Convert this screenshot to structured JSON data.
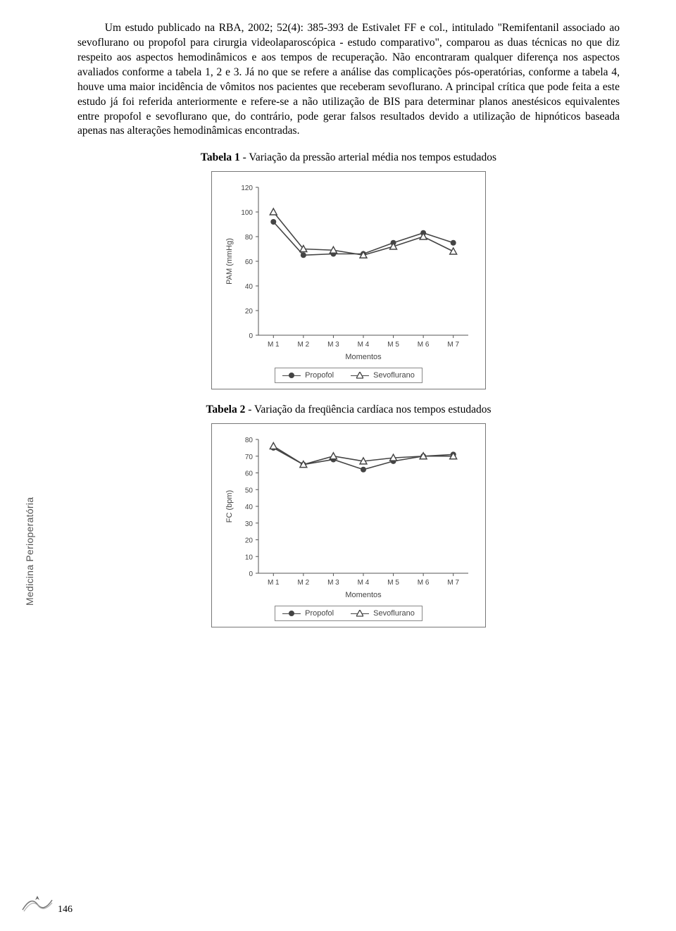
{
  "sidebar_label": "Medicina Perioperatória",
  "page_number": "146",
  "paragraph": "Um estudo publicado na RBA, 2002; 52(4): 385-393 de Estivalet FF e col., intitulado \"Remifentanil associado ao sevoflurano ou propofol para cirurgia videolaparoscópica - estudo comparativo\", comparou as duas técnicas no que diz respeito aos aspectos hemodinâmicos e aos tempos de recuperação. Não encontraram qualquer diferença nos aspectos avaliados conforme a tabela 1, 2 e 3. Já no que se refere a análise das complicações pós-operatórias, conforme a tabela 4, houve uma maior incidência de vômitos nos pacientes que receberam sevoflurano. A principal crítica que pode feita a este estudo já foi referida anteriormente e refere-se a não utilização de BIS para determinar planos anestésicos equivalentes entre propofol e sevoflurano que, do contrário, pode gerar falsos resultados devido a utilização de hipnóticos baseada apenas nas alterações hemodinâmicas encontradas.",
  "table1_caption_bold": "Tabela 1",
  "table1_caption_rest": " - Variação da pressão arterial média nos tempos estudados",
  "table2_caption_bold": "Tabela 2",
  "table2_caption_rest": " - Variação da freqüência cardíaca nos tempos estudados",
  "chart1": {
    "type": "line",
    "ylabel": "PAM (mmHg)",
    "xlabel": "Momentos",
    "categories": [
      "M 1",
      "M 2",
      "M 3",
      "M 4",
      "M 5",
      "M 6",
      "M 7"
    ],
    "yticks": [
      0,
      20,
      40,
      60,
      80,
      100,
      120
    ],
    "ylim": [
      0,
      120
    ],
    "series": [
      {
        "name": "Propofol",
        "marker": "circle",
        "color": "#444444",
        "values": [
          92,
          65,
          66,
          66,
          75,
          83,
          75
        ]
      },
      {
        "name": "Sevoflurano",
        "marker": "triangle",
        "color": "#444444",
        "values": [
          100,
          70,
          69,
          65,
          72,
          80,
          68
        ]
      }
    ],
    "label_fontsize": 11,
    "tick_fontsize": 10,
    "line_color": "#444444",
    "axis_color": "#555555",
    "background": "#ffffff"
  },
  "chart2": {
    "type": "line",
    "ylabel": "FC (bpm)",
    "xlabel": "Momentos",
    "categories": [
      "M 1",
      "M 2",
      "M 3",
      "M 4",
      "M 5",
      "M 6",
      "M 7"
    ],
    "yticks": [
      0,
      10,
      20,
      30,
      40,
      50,
      60,
      70,
      80
    ],
    "ylim": [
      0,
      80
    ],
    "series": [
      {
        "name": "Propofol",
        "marker": "circle",
        "color": "#444444",
        "values": [
          75,
          65,
          68,
          62,
          67,
          70,
          71
        ]
      },
      {
        "name": "Sevoflurano",
        "marker": "triangle",
        "color": "#444444",
        "values": [
          76,
          65,
          70,
          67,
          69,
          70,
          70
        ]
      }
    ],
    "label_fontsize": 11,
    "tick_fontsize": 10,
    "line_color": "#444444",
    "axis_color": "#555555",
    "background": "#ffffff"
  },
  "legend_labels": {
    "propofol": "Propofol",
    "sevoflurano": "Sevoflurano"
  }
}
